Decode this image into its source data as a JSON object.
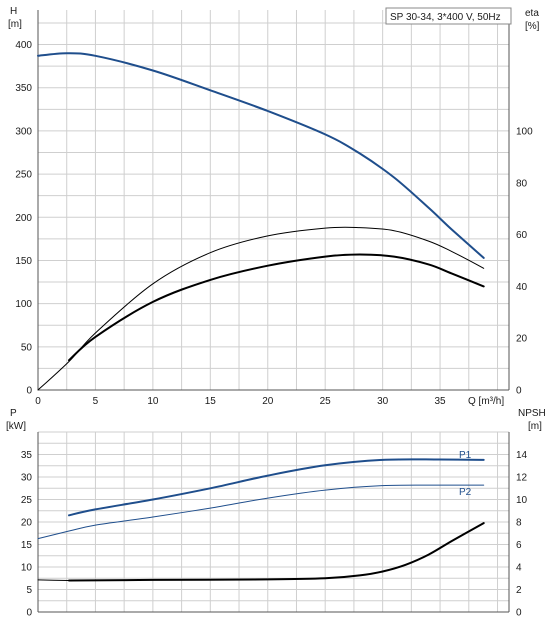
{
  "info": {
    "label": "SP 30-34, 3*400 V, 50Hz"
  },
  "colors": {
    "blue": "#1f4e8c",
    "black": "#000000",
    "grid": "#cfcfcf",
    "axis": "#555555"
  },
  "chart_data": [
    {
      "type": "line",
      "panel": "top",
      "xlabel": "Q [m³/h]",
      "x_ticks": [
        "0",
        "5",
        "10",
        "15",
        "20",
        "25",
        "30",
        "35"
      ],
      "xlim": [
        0,
        41
      ],
      "left_axis": {
        "label_line1": "H",
        "label_line2": "[m]",
        "ylim": [
          0,
          440
        ],
        "ticks": [
          "0",
          "50",
          "100",
          "150",
          "200",
          "250",
          "300",
          "350",
          "400"
        ]
      },
      "right_axis": {
        "label_line1": "eta",
        "label_line2": "[%]",
        "ylim": [
          0,
          146.7
        ],
        "ticks": [
          "0",
          "20",
          "40",
          "60",
          "80",
          "100"
        ]
      },
      "series": [
        {
          "id": "head",
          "axis": "left",
          "color": "#1f4e8c",
          "width": 2,
          "x": [
            0,
            2.5,
            5,
            10,
            15,
            20,
            25,
            28,
            31,
            34,
            36,
            38.8
          ],
          "y": [
            387,
            390,
            387,
            370,
            347,
            323,
            296,
            274,
            246,
            211,
            186,
            153
          ]
        },
        {
          "id": "eta-thin",
          "axis": "right",
          "color": "#000000",
          "width": 1,
          "x": [
            0,
            2.7,
            5,
            10,
            15,
            20,
            25,
            28,
            31,
            34,
            36,
            38.8
          ],
          "y": [
            0,
            11,
            22,
            41,
            53,
            59.5,
            62.5,
            62.7,
            61.5,
            57.5,
            53.5,
            47
          ]
        },
        {
          "id": "eta-bold",
          "axis": "right",
          "color": "#000000",
          "width": 2,
          "x": [
            2.7,
            5,
            10,
            15,
            20,
            25,
            28,
            31,
            34,
            36,
            38.8
          ],
          "y": [
            11.5,
            20.5,
            34,
            42.5,
            48,
            51.5,
            52.3,
            51.5,
            48.5,
            45,
            40
          ]
        }
      ]
    },
    {
      "type": "line",
      "panel": "bottom",
      "xlim": [
        0,
        41
      ],
      "left_axis": {
        "label_line1": "P",
        "label_line2": "[kW]",
        "ylim": [
          0,
          40
        ],
        "ticks": [
          "0",
          "5",
          "10",
          "15",
          "20",
          "25",
          "30",
          "35"
        ]
      },
      "right_axis": {
        "label_line1": "NPSH",
        "label_line2": "[m]",
        "ylim": [
          0,
          16
        ],
        "ticks": [
          "0",
          "2",
          "4",
          "6",
          "8",
          "10",
          "12",
          "14"
        ]
      },
      "series": [
        {
          "id": "p1",
          "name": "P1",
          "axis": "left",
          "color": "#1f4e8c",
          "width": 2,
          "x": [
            2.7,
            5,
            10,
            15,
            20,
            25,
            30,
            35,
            38.8
          ],
          "y": [
            21.5,
            22.8,
            25,
            27.5,
            30.3,
            32.6,
            33.8,
            33.9,
            33.8
          ]
        },
        {
          "id": "p2",
          "name": "P2",
          "axis": "left",
          "color": "#1f4e8c",
          "width": 1,
          "x": [
            0,
            2.7,
            5,
            10,
            15,
            20,
            25,
            30,
            35,
            38.8
          ],
          "y": [
            16.3,
            18,
            19.3,
            21.1,
            23.1,
            25.3,
            27.1,
            28.1,
            28.2,
            28.2
          ]
        },
        {
          "id": "npsh-thin",
          "axis": "right",
          "color": "#000000",
          "width": 1,
          "x": [
            0,
            2.7
          ],
          "y": [
            2.85,
            2.8
          ]
        },
        {
          "id": "npsh-bold",
          "axis": "right",
          "color": "#000000",
          "width": 2,
          "x": [
            2.7,
            10,
            20,
            25,
            28,
            30,
            32,
            34,
            36,
            38.8
          ],
          "y": [
            2.8,
            2.85,
            2.9,
            3.0,
            3.25,
            3.6,
            4.2,
            5.1,
            6.3,
            7.9
          ]
        }
      ]
    }
  ]
}
